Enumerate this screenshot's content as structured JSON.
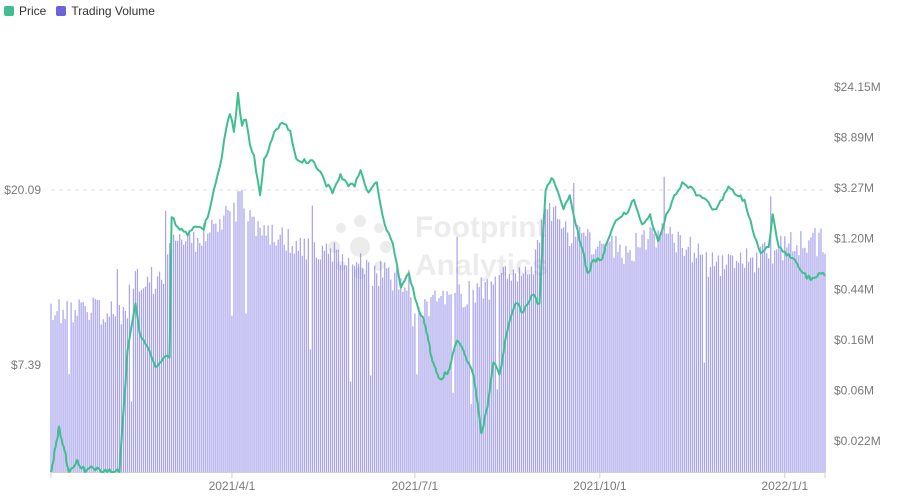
{
  "legend": [
    {
      "label": "Price",
      "color": "#3fbf8f"
    },
    {
      "label": "Trading Volume",
      "color": "#6b63d9"
    }
  ],
  "watermark": {
    "line1": "Footprint",
    "line2": "Analytics"
  },
  "chart_data": {
    "type": "bar+line",
    "x_range": [
      "2021-01-01",
      "2022-01-21"
    ],
    "x_ticks": [
      "2021/4/1",
      "2021/7/1",
      "2021/10/1",
      "2022/1/1"
    ],
    "left_axis": {
      "ticks": [
        "$7.39",
        "$20.09"
      ],
      "tick_values": [
        7.39,
        20.09
      ],
      "scale": "log"
    },
    "right_axis": {
      "ticks": [
        "$0.022M",
        "$0.06M",
        "$0.16M",
        "$0.44M",
        "$1.20M",
        "$3.27M",
        "$8.89M",
        "$24.15M"
      ],
      "tick_values": [
        0.022,
        0.06,
        0.16,
        0.44,
        1.2,
        3.27,
        8.89,
        24.15
      ],
      "scale": "log"
    },
    "colors": {
      "price": "#3fbf8f",
      "volume": "#aaa5ec"
    },
    "price_points": [
      [
        "2021-01-01",
        3.3
      ],
      [
        "2021-01-05",
        5.2
      ],
      [
        "2021-01-10",
        3.4
      ],
      [
        "2021-01-14",
        4.3
      ],
      [
        "2021-01-18",
        3.7
      ],
      [
        "2021-01-22",
        4.1
      ],
      [
        "2021-01-26",
        3.5
      ],
      [
        "2021-01-29",
        4.0
      ],
      [
        "2021-02-01",
        3.1
      ],
      [
        "2021-02-04",
        2.7
      ],
      [
        "2021-02-08",
        8.0
      ],
      [
        "2021-02-12",
        10.5
      ],
      [
        "2021-02-14",
        8.9
      ],
      [
        "2021-02-18",
        8.2
      ],
      [
        "2021-02-22",
        7.3
      ],
      [
        "2021-02-26",
        7.7
      ],
      [
        "2021-03-01",
        7.7
      ],
      [
        "2021-03-02",
        17.2
      ],
      [
        "2021-03-06",
        16.0
      ],
      [
        "2021-03-10",
        15.5
      ],
      [
        "2021-03-14",
        16.3
      ],
      [
        "2021-03-18",
        16.0
      ],
      [
        "2021-03-22",
        19.0
      ],
      [
        "2021-03-26",
        23.0
      ],
      [
        "2021-03-28",
        26.5
      ],
      [
        "2021-03-31",
        31.0
      ],
      [
        "2021-04-02",
        28.0
      ],
      [
        "2021-04-04",
        35.0
      ],
      [
        "2021-04-06",
        29.0
      ],
      [
        "2021-04-08",
        30.0
      ],
      [
        "2021-04-10",
        26.0
      ],
      [
        "2021-04-12",
        24.5
      ],
      [
        "2021-04-15",
        19.5
      ],
      [
        "2021-04-17",
        24.0
      ],
      [
        "2021-04-19",
        25.0
      ],
      [
        "2021-04-22",
        28.0
      ],
      [
        "2021-04-26",
        29.5
      ],
      [
        "2021-04-30",
        28.2
      ],
      [
        "2021-05-03",
        24.0
      ],
      [
        "2021-05-06",
        23.5
      ],
      [
        "2021-05-10",
        23.8
      ],
      [
        "2021-05-14",
        22.5
      ],
      [
        "2021-05-17",
        21.2
      ],
      [
        "2021-05-21",
        19.7
      ],
      [
        "2021-05-25",
        22.0
      ],
      [
        "2021-05-28",
        21.0
      ],
      [
        "2021-06-01",
        20.5
      ],
      [
        "2021-06-04",
        22.5
      ],
      [
        "2021-06-08",
        19.8
      ],
      [
        "2021-06-12",
        21.0
      ],
      [
        "2021-06-16",
        16.5
      ],
      [
        "2021-06-20",
        14.8
      ],
      [
        "2021-06-24",
        11.5
      ],
      [
        "2021-06-28",
        12.5
      ],
      [
        "2021-07-02",
        10.5
      ],
      [
        "2021-07-06",
        9.3
      ],
      [
        "2021-07-10",
        7.5
      ],
      [
        "2021-07-14",
        6.8
      ],
      [
        "2021-07-18",
        7.2
      ],
      [
        "2021-07-22",
        8.5
      ],
      [
        "2021-07-26",
        7.8
      ],
      [
        "2021-07-30",
        7.0
      ],
      [
        "2021-08-03",
        5.0
      ],
      [
        "2021-08-06",
        5.8
      ],
      [
        "2021-08-09",
        7.5
      ],
      [
        "2021-08-12",
        7.0
      ],
      [
        "2021-08-16",
        9.0
      ],
      [
        "2021-08-20",
        10.5
      ],
      [
        "2021-08-24",
        10.0
      ],
      [
        "2021-08-28",
        11.0
      ],
      [
        "2021-09-01",
        10.5
      ],
      [
        "2021-09-04",
        20.0
      ],
      [
        "2021-09-07",
        21.5
      ],
      [
        "2021-09-10",
        20.0
      ],
      [
        "2021-09-13",
        18.0
      ],
      [
        "2021-09-16",
        19.5
      ],
      [
        "2021-09-19",
        16.5
      ],
      [
        "2021-09-22",
        14.5
      ],
      [
        "2021-09-25",
        12.5
      ],
      [
        "2021-09-28",
        13.5
      ],
      [
        "2021-10-02",
        13.5
      ],
      [
        "2021-10-06",
        15.5
      ],
      [
        "2021-10-10",
        17.0
      ],
      [
        "2021-10-14",
        17.5
      ],
      [
        "2021-10-18",
        19.0
      ],
      [
        "2021-10-22",
        16.5
      ],
      [
        "2021-10-26",
        17.5
      ],
      [
        "2021-10-30",
        15.0
      ],
      [
        "2021-11-03",
        17.5
      ],
      [
        "2021-11-07",
        19.5
      ],
      [
        "2021-11-11",
        21.0
      ],
      [
        "2021-11-15",
        20.5
      ],
      [
        "2021-11-19",
        19.5
      ],
      [
        "2021-11-23",
        19.0
      ],
      [
        "2021-11-27",
        18.0
      ],
      [
        "2021-12-01",
        19.0
      ],
      [
        "2021-12-04",
        20.5
      ],
      [
        "2021-12-08",
        19.5
      ],
      [
        "2021-12-12",
        19.0
      ],
      [
        "2021-12-16",
        16.0
      ],
      [
        "2021-12-20",
        14.0
      ],
      [
        "2021-12-24",
        14.5
      ],
      [
        "2021-12-26",
        17.5
      ],
      [
        "2021-12-29",
        14.5
      ],
      [
        "2022-01-02",
        13.8
      ],
      [
        "2022-01-06",
        13.5
      ],
      [
        "2022-01-10",
        12.5
      ],
      [
        "2022-01-14",
        12.0
      ],
      [
        "2022-01-18",
        12.5
      ],
      [
        "2022-01-21",
        12.3
      ]
    ]
  }
}
